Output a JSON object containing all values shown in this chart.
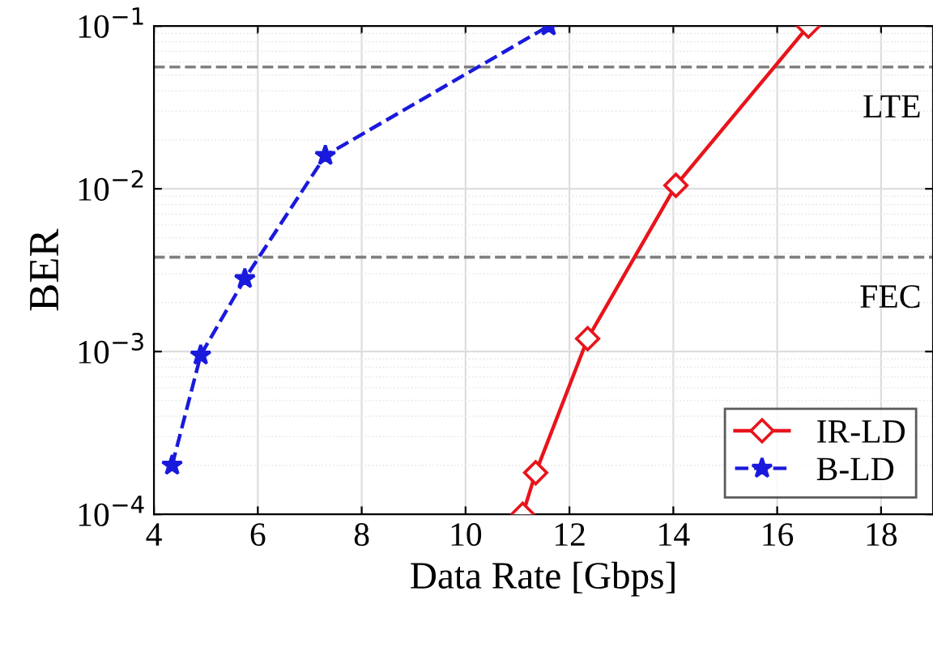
{
  "chart_data": {
    "type": "line",
    "xlabel": "Data Rate [Gbps]",
    "ylabel": "BER",
    "log": "y",
    "xlim": [
      4,
      19
    ],
    "xticks": [
      4,
      6,
      8,
      10,
      12,
      14,
      16,
      18
    ],
    "ylim": [
      0.0001,
      0.1
    ],
    "yticks": [
      {
        "value": 0.0001,
        "label": "10$^{−4}$"
      },
      {
        "value": 0.001,
        "label": "10$^{−3}$"
      },
      {
        "value": 0.01,
        "label": "10$^{−2}$"
      },
      {
        "value": 0.1,
        "label": "10$^{−1}$"
      }
    ],
    "grid": true,
    "legend": "bottom right",
    "series": [
      {
        "name": "IR-LD",
        "color": "#e8141c",
        "marker": "diamond",
        "line_style": "solid",
        "x": [
          11.1,
          11.35,
          12.35,
          14.05,
          16.6
        ],
        "values": [
          0.0001,
          0.00018,
          0.0012,
          0.0105,
          0.1
        ]
      },
      {
        "name": "B-LD",
        "color": "#1a1adc",
        "marker": "star",
        "line_style": "dashed",
        "x": [
          4.35,
          4.9,
          5.75,
          7.3,
          11.6
        ],
        "values": [
          0.0002,
          0.00095,
          0.0028,
          0.016,
          0.1
        ]
      }
    ],
    "ref_lines": [
      {
        "axis": "y",
        "value": 0.056,
        "label": "LTE",
        "color": "#808080",
        "line_style": "dashed"
      },
      {
        "axis": "y",
        "value": 0.0038,
        "label": "FEC",
        "color": "#808080",
        "line_style": "dashed"
      }
    ]
  }
}
